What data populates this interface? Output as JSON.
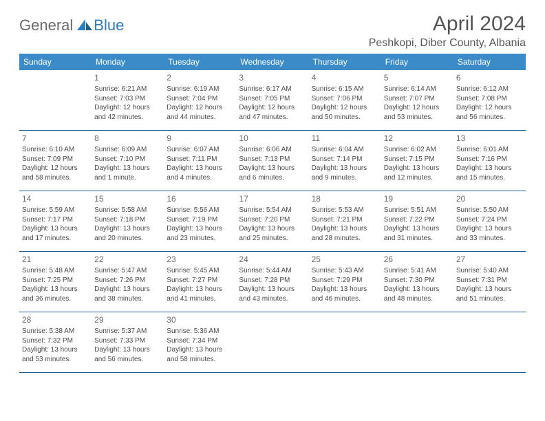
{
  "logo": {
    "part1": "General",
    "part2": "Blue"
  },
  "title": "April 2024",
  "location": "Peshkopi, Diber County, Albania",
  "colors": {
    "header_bg": "#3b8bc9",
    "header_text": "#ffffff",
    "rule": "#1f5f8f",
    "body_text": "#4a4a4a",
    "title_text": "#555555",
    "logo_gray": "#6b6b6b",
    "logo_blue": "#2d7cc1"
  },
  "weekdays": [
    "Sunday",
    "Monday",
    "Tuesday",
    "Wednesday",
    "Thursday",
    "Friday",
    "Saturday"
  ],
  "weeks": [
    [
      null,
      {
        "n": "1",
        "sr": "6:21 AM",
        "ss": "7:03 PM",
        "dl": "12 hours and 42 minutes."
      },
      {
        "n": "2",
        "sr": "6:19 AM",
        "ss": "7:04 PM",
        "dl": "12 hours and 44 minutes."
      },
      {
        "n": "3",
        "sr": "6:17 AM",
        "ss": "7:05 PM",
        "dl": "12 hours and 47 minutes."
      },
      {
        "n": "4",
        "sr": "6:15 AM",
        "ss": "7:06 PM",
        "dl": "12 hours and 50 minutes."
      },
      {
        "n": "5",
        "sr": "6:14 AM",
        "ss": "7:07 PM",
        "dl": "12 hours and 53 minutes."
      },
      {
        "n": "6",
        "sr": "6:12 AM",
        "ss": "7:08 PM",
        "dl": "12 hours and 56 minutes."
      }
    ],
    [
      {
        "n": "7",
        "sr": "6:10 AM",
        "ss": "7:09 PM",
        "dl": "12 hours and 58 minutes."
      },
      {
        "n": "8",
        "sr": "6:09 AM",
        "ss": "7:10 PM",
        "dl": "13 hours and 1 minute."
      },
      {
        "n": "9",
        "sr": "6:07 AM",
        "ss": "7:11 PM",
        "dl": "13 hours and 4 minutes."
      },
      {
        "n": "10",
        "sr": "6:06 AM",
        "ss": "7:13 PM",
        "dl": "13 hours and 6 minutes."
      },
      {
        "n": "11",
        "sr": "6:04 AM",
        "ss": "7:14 PM",
        "dl": "13 hours and 9 minutes."
      },
      {
        "n": "12",
        "sr": "6:02 AM",
        "ss": "7:15 PM",
        "dl": "13 hours and 12 minutes."
      },
      {
        "n": "13",
        "sr": "6:01 AM",
        "ss": "7:16 PM",
        "dl": "13 hours and 15 minutes."
      }
    ],
    [
      {
        "n": "14",
        "sr": "5:59 AM",
        "ss": "7:17 PM",
        "dl": "13 hours and 17 minutes."
      },
      {
        "n": "15",
        "sr": "5:58 AM",
        "ss": "7:18 PM",
        "dl": "13 hours and 20 minutes."
      },
      {
        "n": "16",
        "sr": "5:56 AM",
        "ss": "7:19 PM",
        "dl": "13 hours and 23 minutes."
      },
      {
        "n": "17",
        "sr": "5:54 AM",
        "ss": "7:20 PM",
        "dl": "13 hours and 25 minutes."
      },
      {
        "n": "18",
        "sr": "5:53 AM",
        "ss": "7:21 PM",
        "dl": "13 hours and 28 minutes."
      },
      {
        "n": "19",
        "sr": "5:51 AM",
        "ss": "7:22 PM",
        "dl": "13 hours and 31 minutes."
      },
      {
        "n": "20",
        "sr": "5:50 AM",
        "ss": "7:24 PM",
        "dl": "13 hours and 33 minutes."
      }
    ],
    [
      {
        "n": "21",
        "sr": "5:48 AM",
        "ss": "7:25 PM",
        "dl": "13 hours and 36 minutes."
      },
      {
        "n": "22",
        "sr": "5:47 AM",
        "ss": "7:26 PM",
        "dl": "13 hours and 38 minutes."
      },
      {
        "n": "23",
        "sr": "5:45 AM",
        "ss": "7:27 PM",
        "dl": "13 hours and 41 minutes."
      },
      {
        "n": "24",
        "sr": "5:44 AM",
        "ss": "7:28 PM",
        "dl": "13 hours and 43 minutes."
      },
      {
        "n": "25",
        "sr": "5:43 AM",
        "ss": "7:29 PM",
        "dl": "13 hours and 46 minutes."
      },
      {
        "n": "26",
        "sr": "5:41 AM",
        "ss": "7:30 PM",
        "dl": "13 hours and 48 minutes."
      },
      {
        "n": "27",
        "sr": "5:40 AM",
        "ss": "7:31 PM",
        "dl": "13 hours and 51 minutes."
      }
    ],
    [
      {
        "n": "28",
        "sr": "5:38 AM",
        "ss": "7:32 PM",
        "dl": "13 hours and 53 minutes."
      },
      {
        "n": "29",
        "sr": "5:37 AM",
        "ss": "7:33 PM",
        "dl": "13 hours and 56 minutes."
      },
      {
        "n": "30",
        "sr": "5:36 AM",
        "ss": "7:34 PM",
        "dl": "13 hours and 58 minutes."
      },
      null,
      null,
      null,
      null
    ]
  ],
  "labels": {
    "sunrise": "Sunrise:",
    "sunset": "Sunset:",
    "daylight": "Daylight:"
  }
}
